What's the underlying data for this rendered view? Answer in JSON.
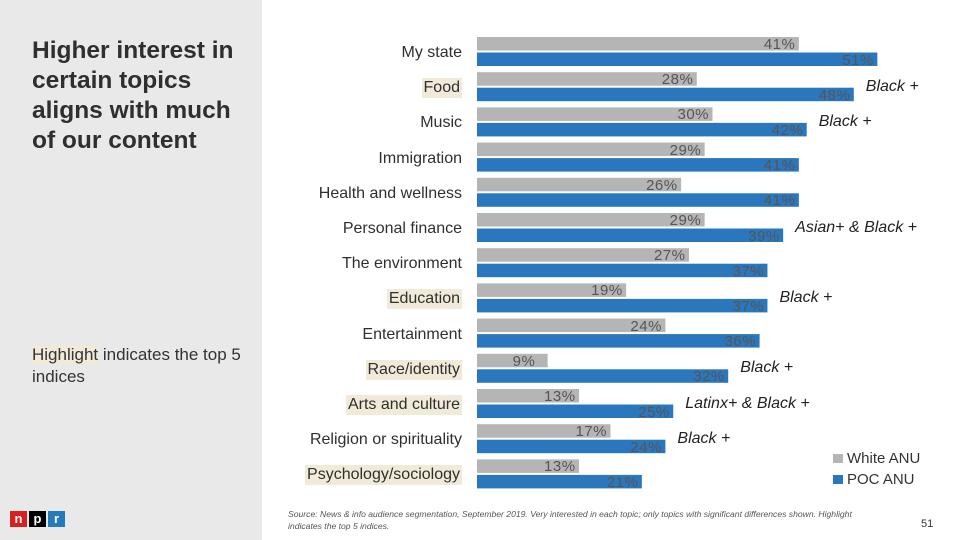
{
  "slide": {
    "title": "Higher interest in certain topics aligns with much of our content",
    "note_parts": [
      "Highlight",
      " indicates the top 5 indices"
    ],
    "source": "Source: News & info audience segmentation, September 2019. Very interested in each topic; only topics with significant differences shown. Highlight indicates the top 5 indices.",
    "page_number": "51",
    "logo_letters": [
      "n",
      "p",
      "r"
    ]
  },
  "colors": {
    "white_anu": "#b5b5b5",
    "poc_anu": "#2b77bd",
    "highlight": "#f1ead8",
    "logo_n": "#d62021",
    "logo_p": "#000000",
    "logo_r": "#237bbd"
  },
  "chart_data": {
    "type": "bar",
    "orientation": "horizontal",
    "title": "",
    "xlabel": "",
    "ylabel": "",
    "xlim": [
      0,
      55
    ],
    "grid": false,
    "legend_position": "bottom-right",
    "categories": [
      "My state",
      "Food",
      "Music",
      "Immigration",
      "Health and wellness",
      "Personal finance",
      "The environment",
      "Education",
      "Entertainment",
      "Race/identity",
      "Arts and culture",
      "Religion or spirituality",
      "Psychology/sociology"
    ],
    "highlighted": [
      false,
      true,
      false,
      false,
      false,
      false,
      false,
      true,
      false,
      true,
      true,
      false,
      true
    ],
    "series": [
      {
        "name": "White ANU",
        "values": [
          41,
          28,
          30,
          29,
          26,
          29,
          27,
          19,
          24,
          9,
          13,
          17,
          13
        ]
      },
      {
        "name": "POC ANU",
        "values": [
          51,
          48,
          42,
          41,
          41,
          39,
          37,
          37,
          36,
          32,
          25,
          24,
          21
        ]
      }
    ],
    "value_suffix": "%",
    "annotations": [
      "",
      "Black +",
      "Black +",
      "",
      "",
      "Asian+ & Black +",
      "",
      "Black +",
      "",
      "Black +",
      "Latinx+ & Black +",
      "Black +",
      ""
    ]
  }
}
